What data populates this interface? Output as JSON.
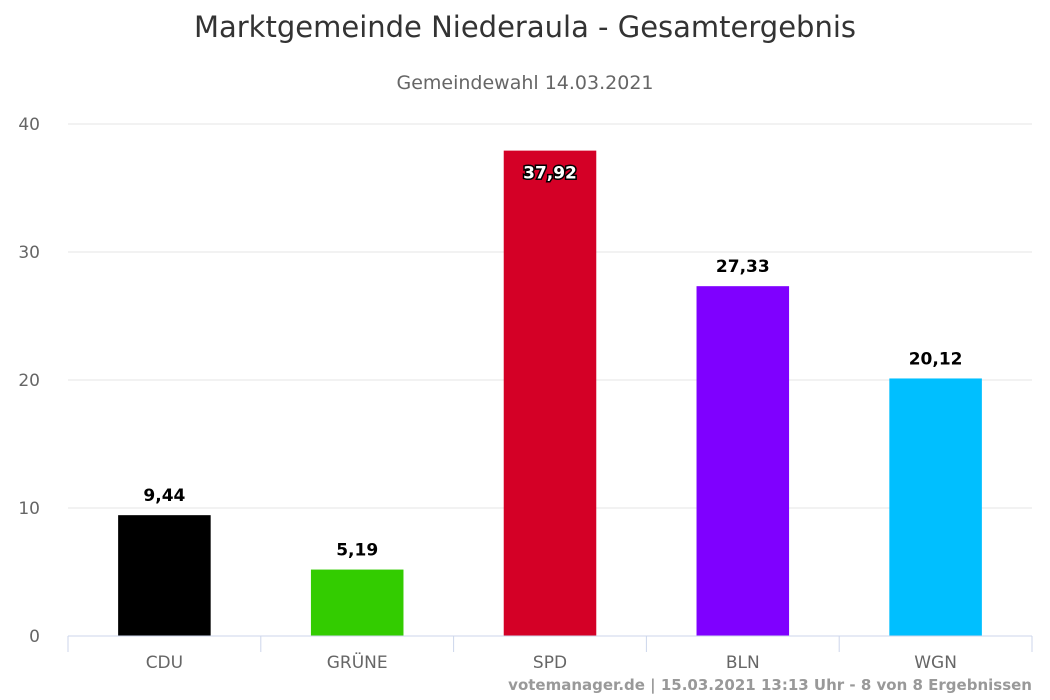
{
  "chart_data": {
    "type": "bar",
    "title": "Marktgemeinde Niederaula - Gesamtergebnis",
    "subtitle": "Gemeindewahl 14.03.2021",
    "categories": [
      "CDU",
      "GRÜNE",
      "SPD",
      "BLN",
      "WGN"
    ],
    "values": [
      9.44,
      5.19,
      37.92,
      27.33,
      20.12
    ],
    "value_labels": [
      "9,44",
      "5,19",
      "37,92",
      "27,33",
      "20,12"
    ],
    "colors": [
      "#000000",
      "#33cc00",
      "#d40026",
      "#7f00ff",
      "#00bfff"
    ],
    "ylim": [
      0,
      40
    ],
    "yticks": [
      0,
      10,
      20,
      30,
      40
    ],
    "xlabel": "",
    "ylabel": "",
    "grid": true,
    "credits": "votemanager.de | 15.03.2021 13:13 Uhr - 8 von 8 Ergebnissen"
  }
}
